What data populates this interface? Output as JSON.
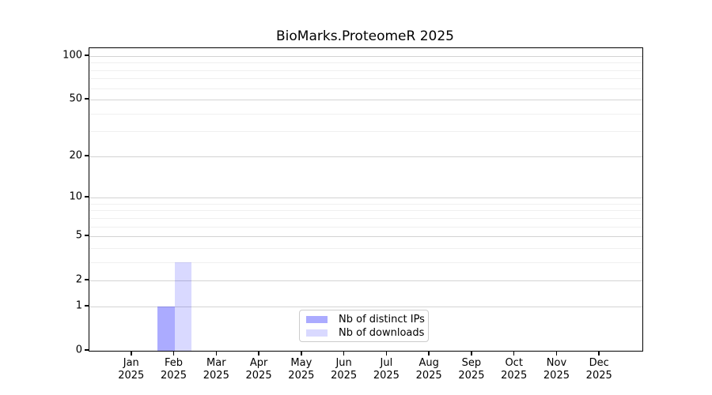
{
  "title": "BioMarks.ProteomeR 2025",
  "chart_data": {
    "type": "bar",
    "title": "BioMarks.ProteomeR 2025",
    "categories": [
      "Jan",
      "Feb",
      "Mar",
      "Apr",
      "May",
      "Jun",
      "Jul",
      "Aug",
      "Sep",
      "Oct",
      "Nov",
      "Dec"
    ],
    "category_year": "2025",
    "series": [
      {
        "name": "Nb of distinct IPs",
        "color": "rgba(0,0,255,0.33)",
        "values": [
          0,
          1,
          0,
          0,
          0,
          0,
          0,
          0,
          0,
          0,
          0,
          0
        ]
      },
      {
        "name": "Nb of downloads",
        "color": "rgba(0,0,255,0.15)",
        "values": [
          0,
          3,
          0,
          0,
          0,
          0,
          0,
          0,
          0,
          0,
          0,
          0
        ]
      }
    ],
    "y_scale": "log10(1+y)",
    "y_major_ticks": [
      0,
      1,
      2,
      5,
      10,
      20,
      50,
      100
    ],
    "y_minor_gridlines": [
      3,
      4,
      6,
      7,
      8,
      9,
      30,
      40,
      60,
      70,
      80,
      90
    ],
    "ylim": [
      0,
      113
    ],
    "grid": "horizontal",
    "legend_position": "lower center",
    "colors": {
      "grid_major": "#d3d3d3",
      "grid_minor": "#f0f0f0",
      "axis": "#000000",
      "legend_border": "#cccccc"
    }
  }
}
